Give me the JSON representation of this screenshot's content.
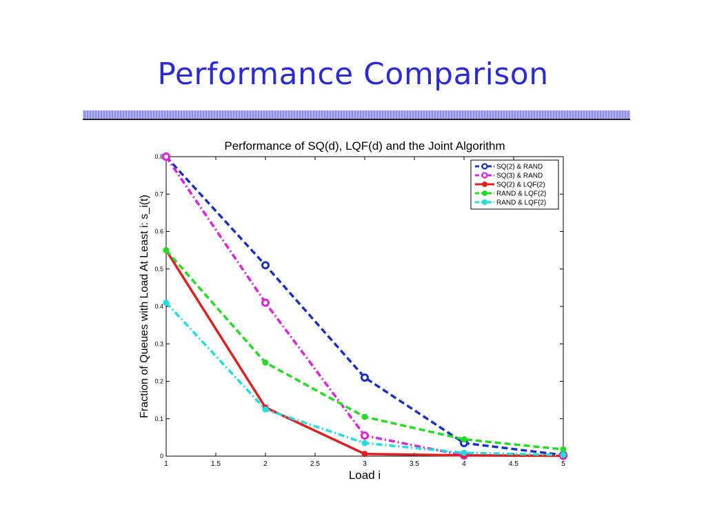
{
  "slide": {
    "title": "Performance Comparison"
  },
  "colors": {
    "title": "#2b2bd6",
    "divider": "#a0a0ea"
  },
  "chart_data": {
    "type": "line",
    "title": "Performance of SQ(d), LQF(d) and the Joint Algorithm",
    "xlabel": "Load i",
    "ylabel": "Fraction of Queues with Load At Least i: s_i(t)",
    "xlim": [
      1,
      5
    ],
    "ylim": [
      0,
      0.8
    ],
    "x_ticks": [
      "1",
      "1.5",
      "2",
      "2.5",
      "3",
      "3.5",
      "4",
      "4.5",
      "5"
    ],
    "y_ticks": [
      "0",
      "0.1",
      "0.2",
      "0.3",
      "0.4",
      "0.5",
      "0.6",
      "0.7",
      "0.8"
    ],
    "grid": false,
    "legend_position": "top-right",
    "x": [
      1,
      2,
      3,
      4,
      5
    ],
    "series": [
      {
        "name": "SQ(2) & RAND",
        "values": [
          0.8,
          0.51,
          0.21,
          0.035,
          0.003
        ],
        "color": "#1a2fc8",
        "dash": "dashed",
        "marker": "open-circle"
      },
      {
        "name": "SQ(3) & RAND",
        "values": [
          0.8,
          0.41,
          0.055,
          0.002,
          0.001
        ],
        "color": "#e020e0",
        "dash": "dashdot",
        "marker": "open-circle"
      },
      {
        "name": "SQ(2) & LQF(2)",
        "values": [
          0.55,
          0.13,
          0.006,
          0.002,
          0.001
        ],
        "color": "#e02020",
        "dash": "solid",
        "marker": "filled-circle"
      },
      {
        "name": "RAND & LQF(2)",
        "values": [
          0.55,
          0.25,
          0.105,
          0.045,
          0.018
        ],
        "color": "#22dd22",
        "dash": "dashed",
        "marker": "filled-circle"
      },
      {
        "name": "RAND & LQF(2)",
        "values": [
          0.41,
          0.125,
          0.035,
          0.009,
          0.003
        ],
        "color": "#22dddd",
        "dash": "dashdot",
        "marker": "filled-circle"
      }
    ]
  }
}
